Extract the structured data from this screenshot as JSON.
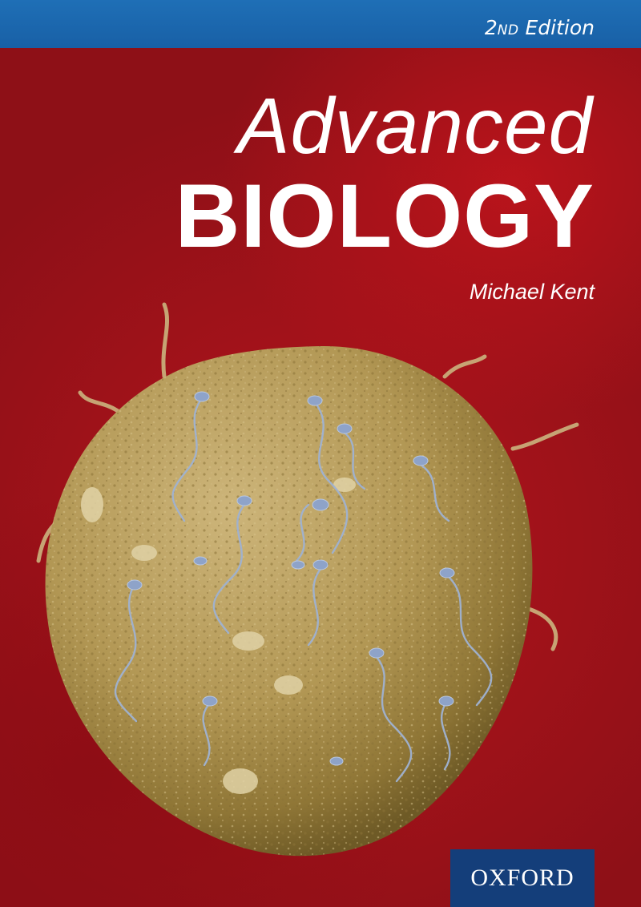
{
  "cover": {
    "edition_number": "2",
    "edition_ordinal": "ND",
    "edition_word": " Edition",
    "title_line1": "Advanced",
    "title_line2": "BIOLOGY",
    "author": "Michael Kent",
    "publisher": "OXFORD",
    "image_icon": "egg-cell-with-sperm-illustration",
    "colors": {
      "background_red": "#b3141c",
      "top_band_blue": "#1f6fb6",
      "publisher_box_blue": "#143e7a",
      "egg_tan": "#b69b5c",
      "sperm_blue": "#8fa4c8"
    }
  }
}
